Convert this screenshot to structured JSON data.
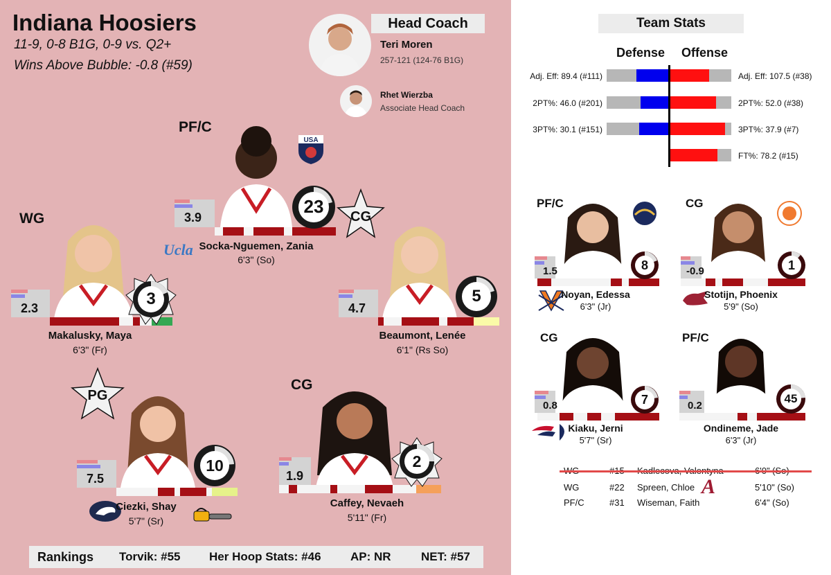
{
  "team": {
    "name": "Indiana Hoosiers",
    "record_line": "11-9, 0-8 B1G, 0-9 vs. Q2+",
    "bubble_line": "Wins Above Bubble: -0.8 (#59)"
  },
  "coaches": {
    "head_label": "Head Coach",
    "head_name": "Teri Moren",
    "head_record": "257-121 (124-76 B1G)",
    "assistant_name": "Rhet Wierzba",
    "assistant_title": "Associate Head Coach"
  },
  "starters": [
    {
      "pos": "PF/C",
      "name": "Socka-Nguemen, Zania",
      "height": "6'3\" (So)",
      "bpm": "3.9",
      "number": "23",
      "badge": "usa-basketball-logo",
      "transfer": "Ucla"
    },
    {
      "pos": "WG",
      "name": "Makalusky, Maya",
      "height": "6'3\" (Fr)",
      "bpm": "2.3",
      "number": "3"
    },
    {
      "pos": "CG",
      "name": "Beaumont, Lenée",
      "height": "6'1\" (Rs So)",
      "bpm": "4.7",
      "number": "5"
    },
    {
      "pos": "PG",
      "name": "Ciezki, Shay",
      "height": "5'7\" (Sr)",
      "bpm": "7.5",
      "number": "10",
      "badge": "penn-state-logo"
    },
    {
      "pos": "CG",
      "name": "Caffey, Nevaeh",
      "height": "5'11\" (Fr)",
      "bpm": "1.9",
      "number": "2"
    }
  ],
  "rankings": {
    "label": "Rankings",
    "torvik": "Torvik: #55",
    "hhs": "Her Hoop Stats: #46",
    "ap": "AP: NR",
    "net": "NET: #57"
  },
  "team_stats": {
    "title": "Team Stats",
    "defense_label": "Defense",
    "offense_label": "Offense",
    "rows": [
      {
        "def_label": "Adj. Eff: 89.4 (#111)",
        "def_fill": 0.52,
        "off_label": "Adj. Eff: 107.5 (#38)",
        "off_fill": 0.64
      },
      {
        "def_label": "2PT%: 46.0 (#201)",
        "def_fill": 0.45,
        "off_label": "2PT%: 52.0 (#38)",
        "off_fill": 0.76
      },
      {
        "def_label": "3PT%: 30.1 (#151)",
        "def_fill": 0.48,
        "off_label": "3PT%: 37.9 (#7)",
        "off_fill": 0.9
      },
      {
        "def_label": "",
        "def_fill": 0,
        "off_label": "FT%: 78.2 (#15)",
        "off_fill": 0.78
      }
    ]
  },
  "reserves": [
    {
      "pos": "PF/C",
      "name": "Noyan, Edessa",
      "height": "6'3\" (Jr)",
      "bpm": "1.5",
      "number": "8"
    },
    {
      "pos": "CG",
      "name": "Stotijn, Phoenix",
      "height": "5'9\" (So)",
      "bpm": "-0.9",
      "number": "1"
    },
    {
      "pos": "CG",
      "name": "Kiaku, Jerni",
      "height": "5'7\" (Sr)",
      "bpm": "0.8",
      "number": "7"
    },
    {
      "pos": "PF/C",
      "name": "Ondineme, Jade",
      "height": "6'3\" (Jr)",
      "bpm": "0.2",
      "number": "45"
    }
  ],
  "bench": [
    {
      "pos": "WG",
      "num": "#15",
      "name": "Kadlecova, Valentyna",
      "height": "6'0\" (So)",
      "struck": true
    },
    {
      "pos": "WG",
      "num": "#22",
      "name": "Spreen, Chloe",
      "height": "5'10\" (So)",
      "struck": false
    },
    {
      "pos": "PF/C",
      "num": "#31",
      "name": "Wiseman, Faith",
      "height": "6'4\" (So)",
      "struck": false
    }
  ],
  "colors": {
    "left_bg": "#e3b3b5",
    "crimson": "#a50f15",
    "defense": "#0000ee",
    "offense": "#ff1010"
  }
}
